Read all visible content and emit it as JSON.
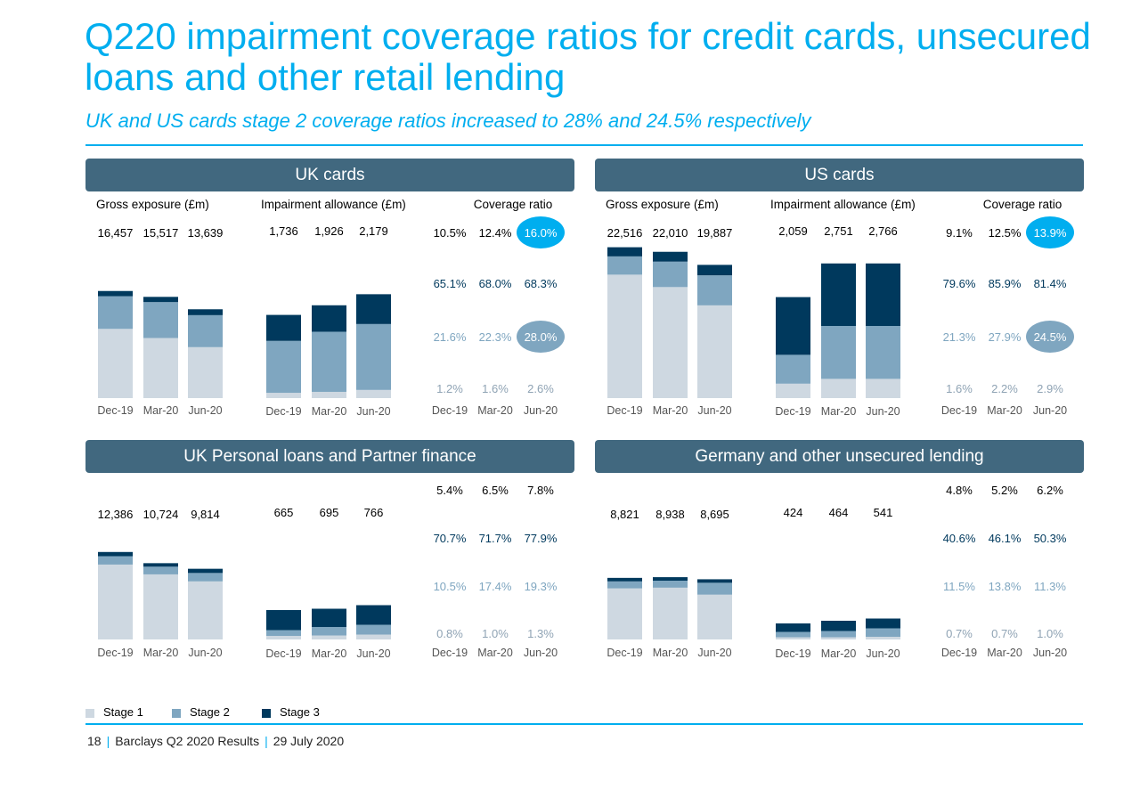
{
  "title": "Q220 impairment coverage ratios for credit cards, unsecured loans and other retail lending",
  "subtitle": "UK and US cards stage 2 coverage ratios increased to 28% and 24.5% respectively",
  "colors": {
    "accent": "#00aeef",
    "header": "#41687f",
    "stage1": "#ced8e1",
    "stage2": "#7fa6c0",
    "stage3": "#00395d"
  },
  "column_labels": {
    "gross": "Gross exposure (£m)",
    "impairment": "Impairment allowance (£m)",
    "coverage": "Coverage ratio"
  },
  "legend": [
    {
      "label": "Stage 1",
      "color": "#ced8e1"
    },
    {
      "label": "Stage 2",
      "color": "#7fa6c0"
    },
    {
      "label": "Stage 3",
      "color": "#00395d"
    }
  ],
  "footer": {
    "page": "18",
    "doc": "Barclays Q2 2020 Results",
    "date": "29 July 2020"
  },
  "chart_data": [
    {
      "type": "bar",
      "panel": "UK cards",
      "categories": [
        "Dec-19",
        "Mar-20",
        "Jun-20"
      ],
      "gross_totals": [
        "16,457",
        "15,517",
        "13,639"
      ],
      "gross_stages": {
        "stage1": [
          10.6,
          9.2,
          7.8
        ],
        "stage2": [
          5.0,
          5.5,
          4.9
        ],
        "stage3": [
          0.8,
          0.8,
          0.9
        ]
      },
      "impairment_totals": [
        "1,736",
        "1,926",
        "2,179"
      ],
      "impairment_stages": {
        "stage1": [
          0.11,
          0.13,
          0.17
        ],
        "stage2": [
          1.08,
          1.25,
          1.37
        ],
        "stage3": [
          0.54,
          0.55,
          0.62
        ]
      },
      "coverage": {
        "total": [
          "10.5%",
          "12.4%",
          "16.0%"
        ],
        "stage3": [
          "65.1%",
          "68.0%",
          "68.3%"
        ],
        "stage2": [
          "21.6%",
          "22.3%",
          "28.0%"
        ],
        "stage1": [
          "1.2%",
          "1.6%",
          "2.6%"
        ]
      },
      "highlight": {
        "total": 2,
        "stage2": 2
      }
    },
    {
      "type": "bar",
      "panel": "US cards",
      "categories": [
        "Dec-19",
        "Mar-20",
        "Jun-20"
      ],
      "gross_totals": [
        "22,516",
        "22,010",
        "19,887"
      ],
      "gross_stages": {
        "stage1": [
          18.9,
          17.0,
          14.2
        ],
        "stage2": [
          2.8,
          3.9,
          4.6
        ],
        "stage3": [
          1.4,
          1.5,
          1.6
        ]
      },
      "impairment_totals": [
        "2,059",
        "2,751",
        "2,766"
      ],
      "impairment_stages": {
        "stage1": [
          0.3,
          0.4,
          0.4
        ],
        "stage2": [
          0.6,
          1.1,
          1.1
        ],
        "stage3": [
          1.2,
          1.3,
          1.3
        ]
      },
      "coverage": {
        "total": [
          "9.1%",
          "12.5%",
          "13.9%"
        ],
        "stage3": [
          "79.6%",
          "85.9%",
          "81.4%"
        ],
        "stage2": [
          "21.3%",
          "27.9%",
          "24.5%"
        ],
        "stage1": [
          "1.6%",
          "2.2%",
          "2.9%"
        ]
      },
      "highlight": {
        "total": 2,
        "stage2": 2
      }
    },
    {
      "type": "bar",
      "panel": "UK Personal loans and Partner finance",
      "categories": [
        "Dec-19",
        "Mar-20",
        "Jun-20"
      ],
      "gross_totals": [
        "12,386",
        "10,724",
        "9,814"
      ],
      "gross_stages": {
        "stage1": [
          10.7,
          9.3,
          8.3
        ],
        "stage2": [
          1.2,
          1.1,
          1.2
        ],
        "stage3": [
          0.6,
          0.5,
          0.6
        ]
      },
      "impairment_totals": [
        "665",
        "695",
        "766"
      ],
      "impairment_stages": {
        "stage1": [
          0.08,
          0.09,
          0.11
        ],
        "stage2": [
          0.13,
          0.19,
          0.22
        ],
        "stage3": [
          0.45,
          0.41,
          0.44
        ]
      },
      "coverage": {
        "total": [
          "5.4%",
          "6.5%",
          "7.8%"
        ],
        "stage3": [
          "70.7%",
          "71.7%",
          "77.9%"
        ],
        "stage2": [
          "10.5%",
          "17.4%",
          "19.3%"
        ],
        "stage1": [
          "0.8%",
          "1.0%",
          "1.3%"
        ]
      },
      "highlight": {}
    },
    {
      "type": "bar",
      "panel": "Germany and other unsecured lending",
      "categories": [
        "Dec-19",
        "Mar-20",
        "Jun-20"
      ],
      "gross_totals": [
        "8,821",
        "8,938",
        "8,695"
      ],
      "gross_stages": {
        "stage1": [
          7.3,
          7.4,
          6.4
        ],
        "stage2": [
          1.0,
          1.0,
          1.7
        ],
        "stage3": [
          0.5,
          0.5,
          0.5
        ]
      },
      "impairment_totals": [
        "424",
        "464",
        "541"
      ],
      "impairment_stages": {
        "stage1": [
          0.05,
          0.05,
          0.06
        ],
        "stage2": [
          0.12,
          0.14,
          0.19
        ],
        "stage3": [
          0.19,
          0.23,
          0.22
        ]
      },
      "coverage": {
        "total": [
          "4.8%",
          "5.2%",
          "6.2%"
        ],
        "stage3": [
          "40.6%",
          "46.1%",
          "50.3%"
        ],
        "stage2": [
          "11.5%",
          "13.8%",
          "11.3%"
        ],
        "stage1": [
          "0.7%",
          "0.7%",
          "1.0%"
        ]
      },
      "highlight": {}
    }
  ]
}
